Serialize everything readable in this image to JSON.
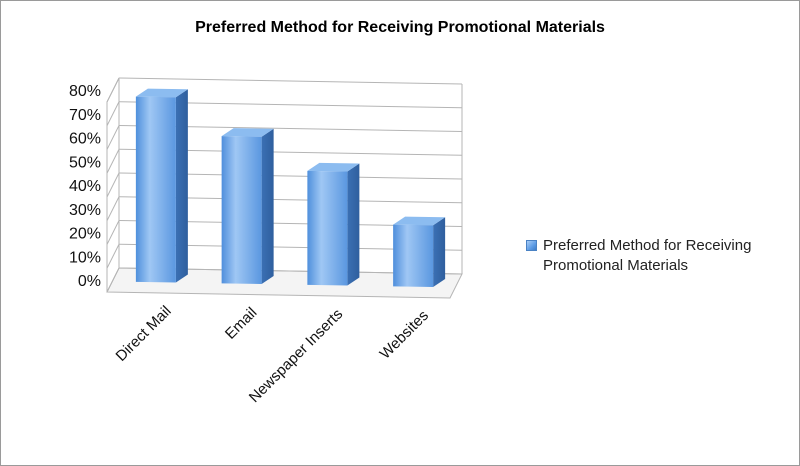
{
  "chart_data": {
    "type": "bar",
    "title": "Preferred Method for Receiving Promotional Materials",
    "categories": [
      "Direct Mail",
      "Email",
      "Newspaper Inserts",
      "Websites"
    ],
    "series": [
      {
        "name": "Preferred Method for Receiving Promotional Materials",
        "values": [
          78,
          62,
          48,
          26
        ]
      }
    ],
    "ylim": [
      0,
      80
    ],
    "y_ticks": [
      "0%",
      "10%",
      "20%",
      "30%",
      "40%",
      "50%",
      "60%",
      "70%",
      "80%"
    ],
    "y_tick_values": [
      0,
      10,
      20,
      30,
      40,
      50,
      60,
      70,
      80
    ],
    "xlabel": "",
    "ylabel": "",
    "grid": true,
    "legend_position": "right",
    "three_d": true,
    "colors": {
      "bar_light": "#a9cdf6",
      "bar_mid": "#5d9ce5",
      "bar_dark": "#3e7cc8",
      "bar_side": "#3f77bd",
      "bar_top": "#8cbcf0",
      "grid": "#b5b5b5",
      "wall": "#ffffff"
    }
  }
}
